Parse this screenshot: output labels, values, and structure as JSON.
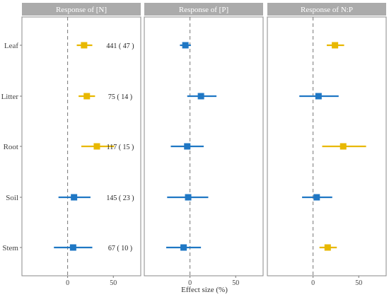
{
  "chart_data": {
    "type": "forest",
    "x_axis_title": "Effect size (%)",
    "categories": [
      "Leaf",
      "Litter",
      "Root",
      "Soil",
      "Stem"
    ],
    "xlim": [
      -50,
      80
    ],
    "xticks": [
      0,
      50
    ],
    "reference_line": 0,
    "colors": {
      "significant": "#E8B800",
      "nonsignificant": "#1F77C4"
    },
    "panels": [
      {
        "title": "Response of [N]",
        "points": [
          {
            "category": "Leaf",
            "mean": 18,
            "lower": 10,
            "upper": 27,
            "significant": true
          },
          {
            "category": "Litter",
            "mean": 21,
            "lower": 12,
            "upper": 30,
            "significant": true
          },
          {
            "category": "Root",
            "mean": 32,
            "lower": 15,
            "upper": 51,
            "significant": true
          },
          {
            "category": "Soil",
            "mean": 7,
            "lower": -10,
            "upper": 25,
            "significant": false
          },
          {
            "category": "Stem",
            "mean": 6,
            "lower": -15,
            "upper": 27,
            "significant": false
          }
        ],
        "annotations": [
          "441 ( 47 )",
          "75 ( 14 )",
          "117 ( 15 )",
          "145 ( 23 )",
          "67 ( 10 )"
        ]
      },
      {
        "title": "Response of [P]",
        "points": [
          {
            "category": "Leaf",
            "mean": -5,
            "lower": -11,
            "upper": 1,
            "significant": false
          },
          {
            "category": "Litter",
            "mean": 12,
            "lower": -3,
            "upper": 29,
            "significant": false
          },
          {
            "category": "Root",
            "mean": -3,
            "lower": -21,
            "upper": 15,
            "significant": false
          },
          {
            "category": "Soil",
            "mean": -2,
            "lower": -25,
            "upper": 20,
            "significant": false
          },
          {
            "category": "Stem",
            "mean": -7,
            "lower": -26,
            "upper": 12,
            "significant": false
          }
        ]
      },
      {
        "title": "Response of N:P",
        "points": [
          {
            "category": "Leaf",
            "mean": 24,
            "lower": 15,
            "upper": 34,
            "significant": true
          },
          {
            "category": "Litter",
            "mean": 6,
            "lower": -15,
            "upper": 28,
            "significant": false
          },
          {
            "category": "Root",
            "mean": 33,
            "lower": 10,
            "upper": 58,
            "significant": true
          },
          {
            "category": "Soil",
            "mean": 4,
            "lower": -12,
            "upper": 21,
            "significant": false
          },
          {
            "category": "Stem",
            "mean": 16,
            "lower": 7,
            "upper": 26,
            "significant": true
          }
        ]
      }
    ]
  }
}
